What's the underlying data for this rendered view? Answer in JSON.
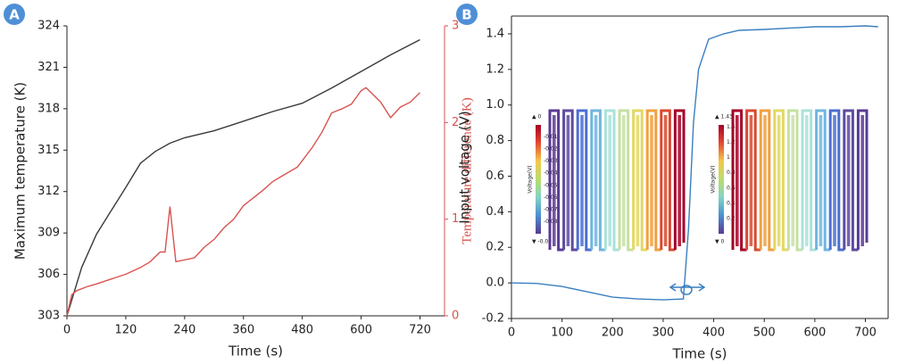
{
  "chart_data": [
    {
      "type": "line",
      "panel_label": "A",
      "x_label": "Time (s)",
      "y_label": "Maximum temperature (K)",
      "y2_label": "Temperature difference (K)",
      "xlim": [
        0,
        770
      ],
      "xticks": [
        0,
        120,
        240,
        360,
        480,
        600,
        720
      ],
      "ylim": [
        303,
        324
      ],
      "yticks": [
        303,
        306,
        309,
        312,
        315,
        318,
        321,
        324
      ],
      "y2lim": [
        0,
        3
      ],
      "y2ticks": [
        0,
        1,
        2,
        3
      ],
      "frame": "open",
      "series": [
        {
          "color": "#3a3a3a",
          "x": [
            0,
            30,
            60,
            90,
            120,
            150,
            180,
            210,
            240,
            300,
            360,
            420,
            480,
            540,
            600,
            660,
            720
          ],
          "values": [
            303,
            306.5,
            308.9,
            310.6,
            312.3,
            314.05,
            314.9,
            315.5,
            315.9,
            316.4,
            317.1,
            317.8,
            318.4,
            319.5,
            320.7,
            321.9,
            323.0
          ]
        },
        {
          "color": "#d9534f",
          "axis": "y2",
          "x": [
            0,
            10,
            20,
            40,
            60,
            90,
            120,
            150,
            170,
            190,
            200,
            210,
            222,
            260,
            280,
            300,
            320,
            340,
            360,
            380,
            400,
            420,
            440,
            470,
            500,
            520,
            540,
            560,
            580,
            600,
            610,
            640,
            660,
            680,
            700,
            720
          ],
          "values": [
            0,
            0.22,
            0.26,
            0.3,
            0.33,
            0.38,
            0.43,
            0.5,
            0.56,
            0.66,
            0.66,
            1.13,
            0.56,
            0.6,
            0.71,
            0.79,
            0.91,
            1.0,
            1.14,
            1.22,
            1.3,
            1.39,
            1.45,
            1.54,
            1.74,
            1.9,
            2.1,
            2.14,
            2.19,
            2.33,
            2.36,
            2.21,
            2.05,
            2.16,
            2.21,
            2.31
          ]
        }
      ]
    },
    {
      "type": "line",
      "panel_label": "B",
      "x_label": "Time (s)",
      "y_label": "Input voltage (V)",
      "xlim": [
        0,
        745
      ],
      "xticks": [
        0,
        100,
        200,
        300,
        400,
        500,
        600,
        700
      ],
      "ylim": [
        -0.2,
        1.5
      ],
      "yticks": [
        -0.2,
        {
          "value": 0,
          "label": "0.0"
        },
        0.2,
        0.4,
        0.6,
        0.8,
        {
          "value": 1,
          "label": "1.0"
        },
        1.2,
        1.4
      ],
      "frame": "box",
      "series": [
        {
          "color": "#3a7fc1",
          "x": [
            0,
            50,
            100,
            150,
            200,
            250,
            300,
            340,
            350,
            360,
            370,
            390,
            420,
            450,
            500,
            600,
            650,
            700,
            725
          ],
          "values": [
            0,
            -0.003,
            -0.02,
            -0.05,
            -0.08,
            -0.09,
            -0.095,
            -0.09,
            0.3,
            0.9,
            1.2,
            1.37,
            1.4,
            1.42,
            1.425,
            1.44,
            1.44,
            1.445,
            1.44
          ]
        }
      ],
      "insets": [
        {
          "colorbar_title": "Voltage(V)",
          "colormap": [
            "#a50026",
            "#e34a33",
            "#f4c84a",
            "#b9dd6b",
            "#83d3c6",
            "#4b8fd0",
            "#5a3a94"
          ],
          "ticks": [
            {
              "value": 0,
              "label": "▲ 0"
            },
            -0.01,
            -0.02,
            -0.03,
            -0.04,
            -0.05,
            -0.06,
            -0.07,
            -0.08,
            {
              "value": -0.09,
              "label": "▼ -0.09"
            }
          ],
          "column_colors": [
            "#5a3a94",
            "#5e4aa0",
            "#4a6fd0",
            "#6fb6e0",
            "#a9e2da",
            "#c6e0a2",
            "#e3d862",
            "#f0a040",
            "#d8492f",
            "#a50026"
          ]
        },
        {
          "colorbar_title": "Voltage(V)",
          "colormap": [
            "#a50026",
            "#e34a33",
            "#f4c84a",
            "#b9dd6b",
            "#83d3c6",
            "#4b8fd0",
            "#5a3a94"
          ],
          "ticks": [
            {
              "value": 1.43,
              "label": "▲ 1.43"
            },
            1.4,
            1.2,
            1,
            0.8,
            0.6,
            0.4,
            0.2,
            {
              "value": 0,
              "label": "▼ 0"
            }
          ],
          "column_colors": [
            "#a50026",
            "#d8492f",
            "#f0a040",
            "#e3d862",
            "#c6e0a2",
            "#a9e2da",
            "#6fb6e0",
            "#4a6fd0",
            "#5e4aa0",
            "#5a3a94"
          ]
        }
      ]
    }
  ]
}
